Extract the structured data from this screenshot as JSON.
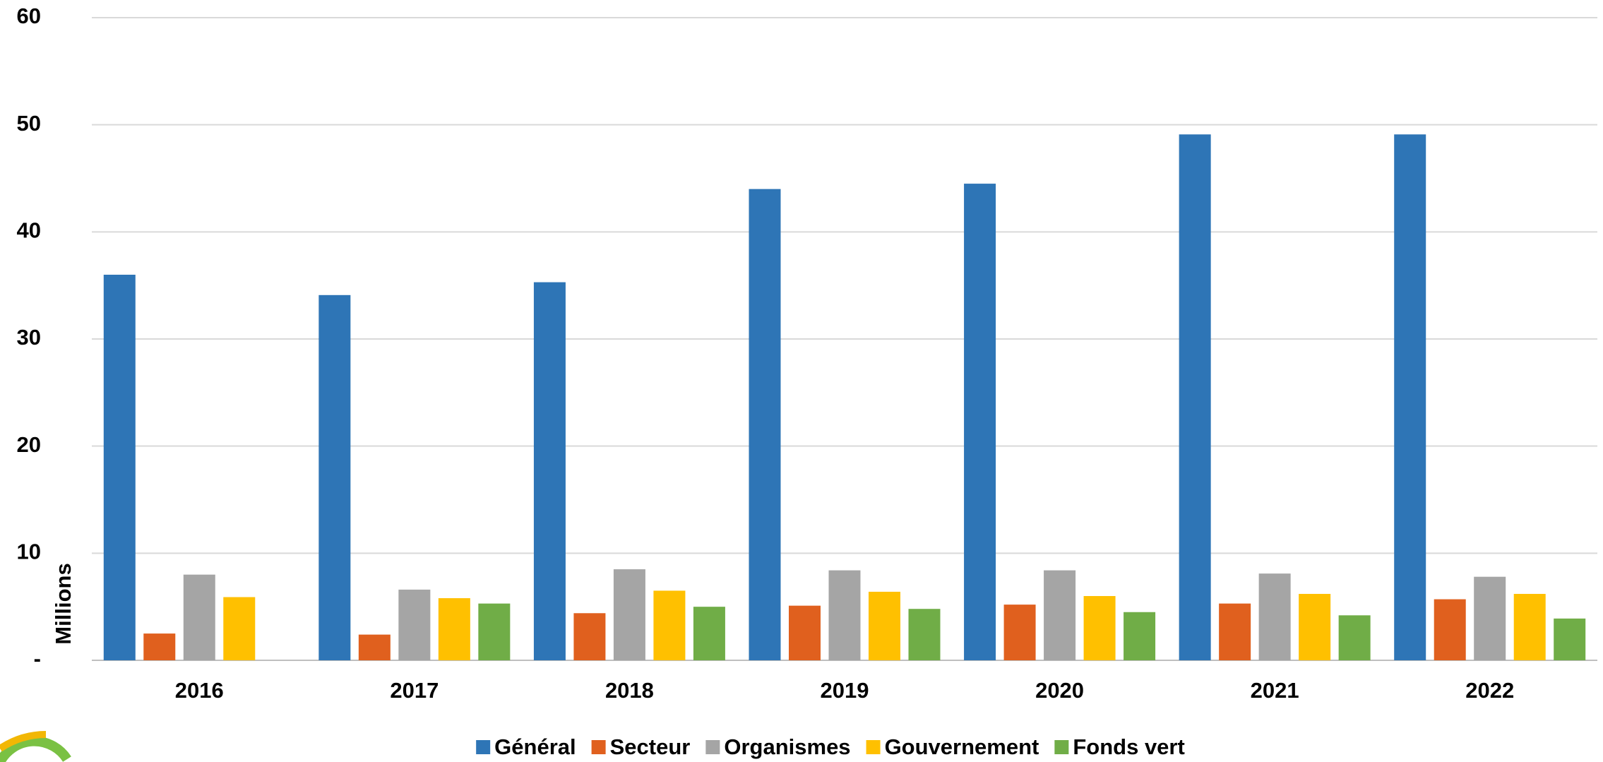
{
  "chart_data": {
    "type": "bar",
    "y_label": "Millions",
    "categories": [
      "2016",
      "2017",
      "2018",
      "2019",
      "2020",
      "2021",
      "2022"
    ],
    "series": [
      {
        "name": "Général",
        "color": "#2e75b6",
        "values": [
          36,
          34.1,
          35.3,
          44,
          44.5,
          49.1,
          49.1
        ]
      },
      {
        "name": "Secteur",
        "color": "#e0601e",
        "values": [
          2.5,
          2.4,
          4.4,
          5.1,
          5.2,
          5.3,
          5.7
        ]
      },
      {
        "name": "Organismes",
        "color": "#a5a5a5",
        "values": [
          8,
          6.6,
          8.5,
          8.4,
          8.4,
          8.1,
          7.8
        ]
      },
      {
        "name": "Gouvernement",
        "color": "#ffc000",
        "values": [
          5.9,
          5.8,
          6.5,
          6.4,
          6.0,
          6.2,
          6.2
        ]
      },
      {
        "name": "Fonds vert",
        "color": "#70ad47",
        "values": [
          null,
          5.3,
          5.0,
          4.8,
          4.5,
          4.2,
          3.9
        ]
      }
    ],
    "ylim": [
      0,
      60
    ],
    "yticks": [
      {
        "value": 0,
        "label": "-"
      },
      10,
      20,
      30,
      40,
      50,
      60
    ],
    "grid": true
  }
}
